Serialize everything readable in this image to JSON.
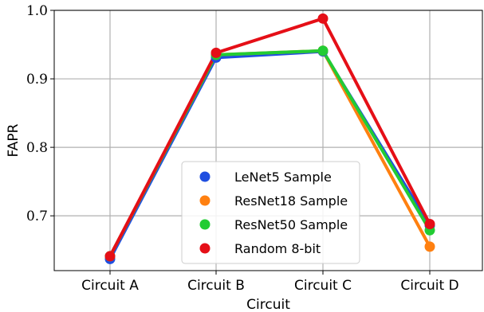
{
  "chart_data": {
    "type": "line",
    "title": "",
    "xlabel": "Circuit",
    "ylabel": "FAPR",
    "categories": [
      "Circuit A",
      "Circuit B",
      "Circuit C",
      "Circuit D"
    ],
    "ylim": [
      0.62,
      1.0
    ],
    "yticks": [
      "0.7",
      "0.8",
      "0.9",
      "1.0"
    ],
    "grid": true,
    "legend_position": "lower center",
    "series": [
      {
        "name": "LeNet5 Sample",
        "color": "#1f4ee0",
        "values": [
          0.637,
          0.931,
          0.94,
          0.686
        ]
      },
      {
        "name": "ResNet18 Sample",
        "color": "#ff8010",
        "values": [
          0.641,
          0.935,
          0.941,
          0.655
        ]
      },
      {
        "name": "ResNet50 Sample",
        "color": "#22cc33",
        "values": [
          0.641,
          0.935,
          0.941,
          0.679
        ]
      },
      {
        "name": "Random 8-bit",
        "color": "#e50f17",
        "values": [
          0.641,
          0.938,
          0.988,
          0.688
        ]
      }
    ]
  }
}
